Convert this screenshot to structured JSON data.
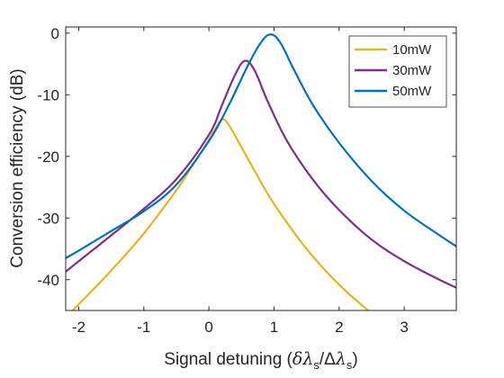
{
  "chart_data": {
    "type": "line",
    "title": "",
    "xlabel": "Signal detuning (δλs/Δλs)",
    "xlabel_parts": {
      "prefix": "Signal detuning (",
      "sym1": "δλ",
      "sub1": "s",
      "slash": "/Δ",
      "sym2": "λ",
      "sub2": "s",
      "suffix": ")"
    },
    "ylabel": "Conversion efficiency (dB)",
    "xlim": [
      -2.2,
      3.8
    ],
    "ylim": [
      -45,
      1
    ],
    "xticks": [
      -2,
      -1,
      0,
      1,
      2,
      3
    ],
    "yticks": [
      0,
      -10,
      -20,
      -30,
      -40
    ],
    "grid": false,
    "legend_position": "top-right",
    "series": [
      {
        "name": "10mW",
        "color": "#EDB120",
        "x": [
          -2.2,
          -2.0,
          -1.5,
          -1.0,
          -0.5,
          -0.3,
          -0.1,
          0.0,
          0.1,
          0.2,
          0.3,
          0.5,
          0.7,
          1.0,
          1.5,
          2.0,
          2.5
        ],
        "y": [
          -46.0,
          -44.0,
          -38.5,
          -32.5,
          -25.5,
          -22.3,
          -19.0,
          -17.3,
          -15.5,
          -14.0,
          -14.8,
          -18.5,
          -22.3,
          -27.7,
          -35.0,
          -40.8,
          -45.5
        ]
      },
      {
        "name": "30mW",
        "color": "#7E2F8E",
        "x": [
          -2.2,
          -2.0,
          -1.5,
          -1.0,
          -0.5,
          0.0,
          0.2,
          0.4,
          0.55,
          0.7,
          0.9,
          1.2,
          1.6,
          2.0,
          2.5,
          3.0,
          3.5,
          3.8
        ],
        "y": [
          -38.7,
          -37.0,
          -32.8,
          -28.5,
          -23.7,
          -16.5,
          -11.7,
          -6.8,
          -4.5,
          -6.0,
          -11.0,
          -17.5,
          -23.8,
          -28.7,
          -33.5,
          -37.0,
          -39.8,
          -41.3
        ]
      },
      {
        "name": "50mW",
        "color": "#0072BD",
        "x": [
          -2.2,
          -2.0,
          -1.5,
          -1.0,
          -0.5,
          0.0,
          0.3,
          0.6,
          0.8,
          0.95,
          1.1,
          1.3,
          1.6,
          2.0,
          2.5,
          3.0,
          3.5,
          3.8
        ],
        "y": [
          -36.5,
          -35.3,
          -32.1,
          -28.9,
          -24.6,
          -17.5,
          -11.8,
          -5.2,
          -1.5,
          -0.2,
          -1.6,
          -5.8,
          -11.7,
          -17.8,
          -24.0,
          -28.8,
          -32.5,
          -34.6
        ]
      }
    ]
  }
}
